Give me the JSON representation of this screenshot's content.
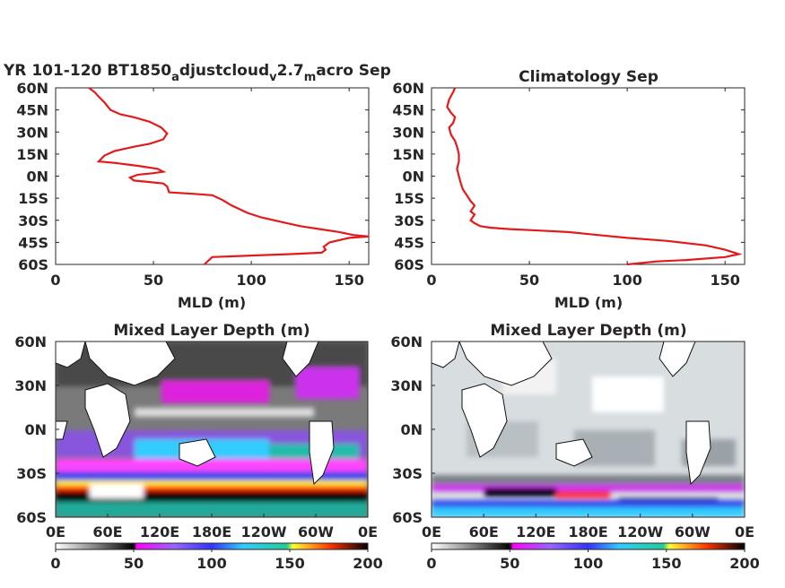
{
  "chart_data": [
    {
      "type": "line",
      "title": "YR 101-120 BT1850",
      "title_parts": [
        "YR 101-120 BT1850",
        "a",
        "djustcloud",
        "v",
        "2.7",
        "m",
        "acro Sep"
      ],
      "xlabel": "MLD (m)",
      "ylabel": "",
      "xlim": [
        0,
        160
      ],
      "ylim": [
        -60,
        60
      ],
      "xticks": [
        "0",
        "50",
        "100",
        "150"
      ],
      "yticks": [
        "60N",
        "45N",
        "30N",
        "15N",
        "0N",
        "15S",
        "30S",
        "45S",
        "60S"
      ],
      "grid": false,
      "line_color": "#e31a1c",
      "series": [
        {
          "x": [
            17,
            20,
            22,
            25,
            28,
            33,
            40,
            48,
            54,
            57,
            55,
            48,
            40,
            30,
            25,
            22,
            30,
            42,
            52,
            55,
            50,
            42,
            38,
            40,
            48,
            55,
            57,
            58,
            70,
            80,
            85,
            90,
            98,
            105,
            115,
            125,
            135,
            145,
            152,
            160,
            150,
            140,
            137,
            138,
            136,
            120,
            100,
            80,
            76
          ],
          "y": [
            60,
            57,
            54,
            50,
            45,
            42,
            40,
            37,
            33,
            29,
            25,
            22,
            20,
            17,
            14,
            10,
            9,
            7,
            5,
            3,
            2,
            1,
            -1,
            -3,
            -4,
            -5,
            -7,
            -11,
            -12,
            -13,
            -16,
            -20,
            -25,
            -28,
            -31,
            -34,
            -36,
            -38,
            -40,
            -41,
            -42,
            -45,
            -48,
            -50,
            -52,
            -53,
            -54,
            -55,
            -60
          ]
        }
      ]
    },
    {
      "type": "line",
      "title": "Climatology Sep",
      "xlabel": "MLD (m)",
      "ylabel": "",
      "xlim": [
        0,
        160
      ],
      "ylim": [
        -60,
        60
      ],
      "xticks": [
        "0",
        "50",
        "100",
        "150"
      ],
      "yticks": [
        "60N",
        "45N",
        "30N",
        "15N",
        "0N",
        "15S",
        "30S",
        "45S",
        "60S"
      ],
      "grid": false,
      "line_color": "#e31a1c",
      "series": [
        {
          "x": [
            12,
            11,
            9,
            8,
            10,
            12,
            11,
            9,
            10,
            12,
            13,
            14,
            14,
            13,
            14,
            15,
            16,
            18,
            20,
            22,
            21,
            20,
            22,
            21,
            20,
            22,
            25,
            30,
            40,
            55,
            70,
            85,
            100,
            120,
            140,
            150,
            157,
            150,
            130,
            115,
            100
          ],
          "y": [
            60,
            57,
            52,
            47,
            43,
            40,
            36,
            33,
            28,
            24,
            20,
            15,
            10,
            5,
            0,
            -5,
            -9,
            -13,
            -17,
            -20,
            -22,
            -24,
            -26,
            -28,
            -30,
            -32,
            -34,
            -35,
            -36,
            -37,
            -38,
            -40,
            -42,
            -44,
            -47,
            -50,
            -53,
            -55,
            -57,
            -58,
            -60
          ]
        }
      ]
    },
    {
      "type": "heatmap",
      "title": "Mixed Layer Depth (m)",
      "xticks": [
        "0E",
        "60E",
        "120E",
        "180E",
        "120W",
        "60W",
        "0E"
      ],
      "yticks": [
        "60N",
        "30N",
        "0N",
        "30S",
        "60S"
      ],
      "xlim": [
        0,
        360
      ],
      "ylim": [
        -60,
        60
      ],
      "colorbar": {
        "ticks": [
          "0",
          "50",
          "100",
          "150",
          "200"
        ],
        "range": [
          0,
          200
        ]
      },
      "colormap": [
        "#ffffff",
        "#8c8c8c",
        "#000000",
        "#ff00ff",
        "#9966ff",
        "#3333ff",
        "#33ccff",
        "#22cc99",
        "#ffff33",
        "#ff3300",
        "#000000"
      ]
    },
    {
      "type": "heatmap",
      "title": "Mixed Layer Depth (m)",
      "xticks": [
        "0E",
        "60E",
        "120E",
        "180E",
        "120W",
        "60W",
        "0E"
      ],
      "yticks": [
        "60N",
        "30N",
        "0N",
        "30S",
        "60S"
      ],
      "xlim": [
        0,
        360
      ],
      "ylim": [
        -60,
        60
      ],
      "colorbar": {
        "ticks": [
          "0",
          "50",
          "100",
          "150",
          "200"
        ],
        "range": [
          0,
          200
        ]
      },
      "colormap": [
        "#ffffff",
        "#8c8c8c",
        "#000000",
        "#ff00ff",
        "#9966ff",
        "#3333ff",
        "#33ccff",
        "#22cc99",
        "#ffff33",
        "#ff3300",
        "#000000"
      ]
    }
  ]
}
